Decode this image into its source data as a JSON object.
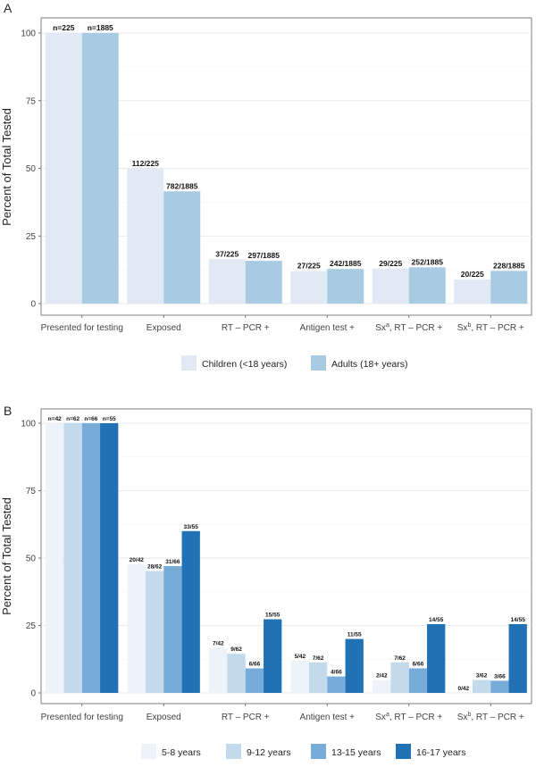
{
  "chart_data": [
    {
      "panel": "A",
      "type": "bar",
      "title": "",
      "xlabel": "",
      "ylabel": "Percent of Total Tested",
      "ylim": [
        0,
        100
      ],
      "yticks": [
        0,
        25,
        50,
        75,
        100
      ],
      "grid": true,
      "legend_position": "bottom",
      "categories": [
        {
          "main": "Presented for testing",
          "sup": "",
          "tail": ""
        },
        {
          "main": "Exposed",
          "sup": "",
          "tail": ""
        },
        {
          "main": "RT – PCR +",
          "sup": "",
          "tail": ""
        },
        {
          "main": "Antigen test +",
          "sup": "",
          "tail": ""
        },
        {
          "main": "Sx",
          "sup": "a",
          "tail": ", RT – PCR +"
        },
        {
          "main": "Sx",
          "sup": "b",
          "tail": ", RT – PCR +"
        }
      ],
      "series": [
        {
          "name": "Children (<18 years)",
          "color": "#e1e9f5",
          "values": [
            100,
            49.8,
            16.4,
            12.0,
            12.9,
            8.9
          ],
          "labels": [
            "n=225",
            "112/225",
            "37/225",
            "27/225",
            "29/225",
            "20/225"
          ]
        },
        {
          "name": "Adults (18+ years)",
          "color": "#a8cbe2",
          "values": [
            100,
            41.5,
            15.8,
            12.8,
            13.4,
            12.1
          ],
          "labels": [
            "n=1885",
            "782/1885",
            "297/1885",
            "242/1885",
            "252/1885",
            "228/1885"
          ]
        }
      ]
    },
    {
      "panel": "B",
      "type": "bar",
      "title": "",
      "xlabel": "",
      "ylabel": "Percent of Total Tested",
      "ylim": [
        0,
        100
      ],
      "yticks": [
        0,
        25,
        50,
        75,
        100
      ],
      "grid": true,
      "legend_position": "bottom",
      "categories": [
        {
          "main": "Presented for testing",
          "sup": "",
          "tail": ""
        },
        {
          "main": "Exposed",
          "sup": "",
          "tail": ""
        },
        {
          "main": "RT – PCR +",
          "sup": "",
          "tail": ""
        },
        {
          "main": "Antigen test +",
          "sup": "",
          "tail": ""
        },
        {
          "main": "Sx",
          "sup": "a",
          "tail": ", RT – PCR +"
        },
        {
          "main": "Sx",
          "sup": "b",
          "tail": ", RT – PCR +"
        }
      ],
      "series": [
        {
          "name": "5-8 years",
          "color": "#eef3fa",
          "values": [
            100,
            47.6,
            16.7,
            11.9,
            4.8,
            0
          ],
          "labels": [
            "n=42",
            "20/42",
            "7/42",
            "5/42",
            "2/42",
            "0/42"
          ]
        },
        {
          "name": "9-12 years",
          "color": "#c3d9ec",
          "values": [
            100,
            45.2,
            14.5,
            11.3,
            11.3,
            4.8
          ],
          "labels": [
            "n=62",
            "28/62",
            "9/62",
            "7/62",
            "7/62",
            "3/62"
          ]
        },
        {
          "name": "13-15 years",
          "color": "#78acd8",
          "values": [
            100,
            47.0,
            9.1,
            6.1,
            9.1,
            4.5
          ],
          "labels": [
            "n=66",
            "31/66",
            "6/66",
            "4/66",
            "6/66",
            "3/66"
          ]
        },
        {
          "name": "16-17 years",
          "color": "#2171b5",
          "values": [
            100,
            60.0,
            27.3,
            20.0,
            25.5,
            25.5
          ],
          "labels": [
            "n=55",
            "33/55",
            "15/55",
            "11/55",
            "14/55",
            "14/55"
          ]
        }
      ]
    }
  ]
}
